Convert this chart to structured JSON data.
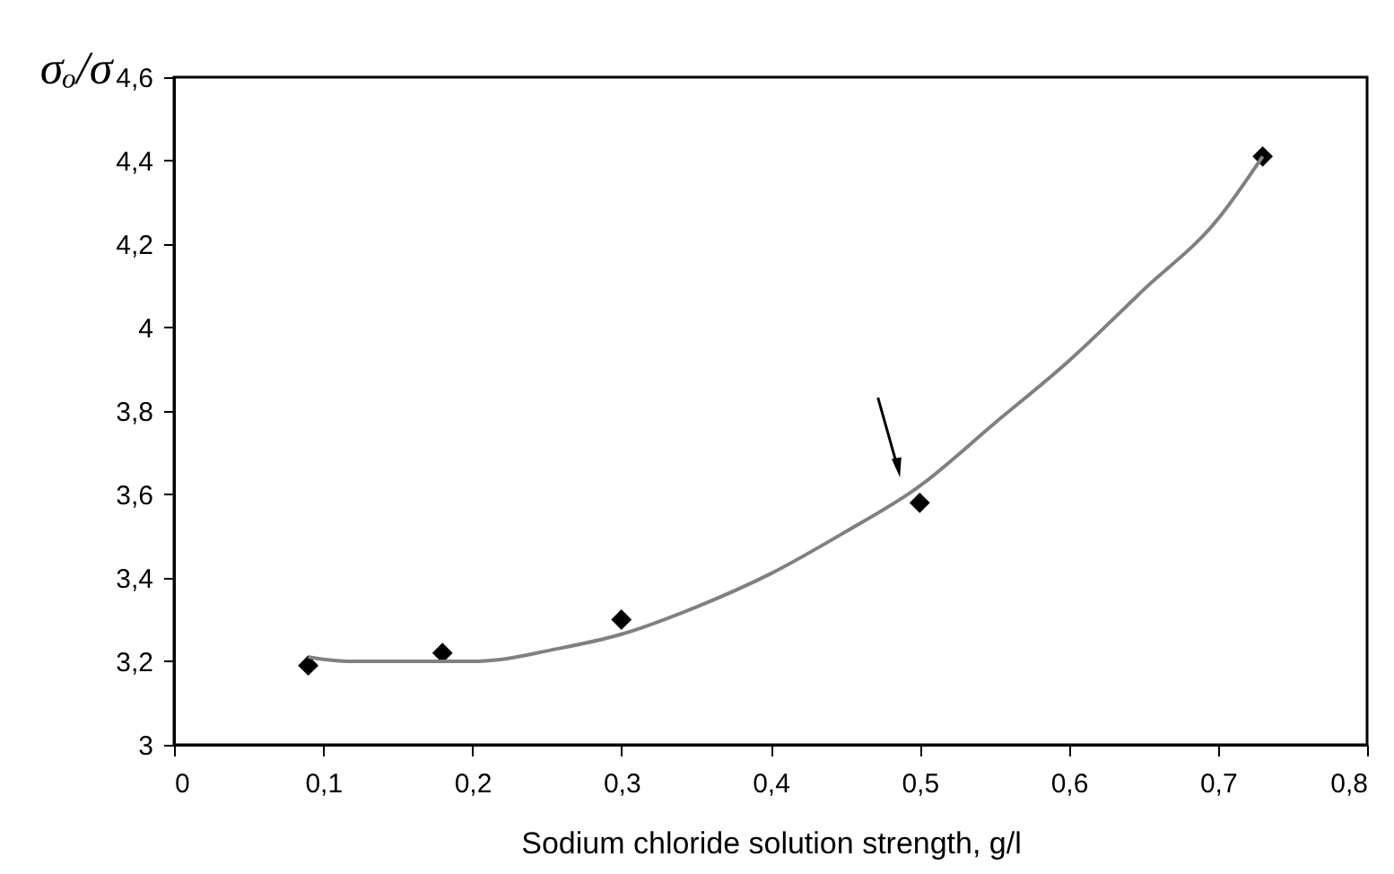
{
  "chart_data": {
    "type": "scatter",
    "xlabel": "Sodium chloride solution strength, g/l",
    "ylabel": "σₒ/σ",
    "xlim": [
      0,
      0.8
    ],
    "ylim": [
      3,
      4.6
    ],
    "xticks": [
      0,
      {
        "value": 0.1,
        "label": "0,1"
      },
      {
        "value": 0.2,
        "label": "0,2"
      },
      {
        "value": 0.3,
        "label": "0,3"
      },
      {
        "value": 0.4,
        "label": "0,4"
      },
      {
        "value": 0.5,
        "label": "0,5"
      },
      {
        "value": 0.6,
        "label": "0,6"
      },
      {
        "value": 0.7,
        "label": "0,7"
      },
      {
        "value": 0.8,
        "label": "0,8"
      }
    ],
    "yticks": [
      3,
      {
        "value": 3.2,
        "label": "3,2"
      },
      {
        "value": 3.4,
        "label": "3,4"
      },
      {
        "value": 3.6,
        "label": "3,6"
      },
      {
        "value": 3.8,
        "label": "3,8"
      },
      4,
      {
        "value": 4.2,
        "label": "4,2"
      },
      {
        "value": 4.4,
        "label": "4,4"
      },
      {
        "value": 4.6,
        "label": "4,6"
      }
    ],
    "grid": false,
    "series": [
      {
        "color": "#000000",
        "marker": "diamond",
        "x": [
          0.09,
          0.18,
          0.3,
          0.5,
          0.73
        ],
        "values": [
          3.19,
          3.22,
          3.3,
          3.58,
          4.41
        ]
      },
      {
        "type": "line",
        "color": "#808080",
        "marker": "none",
        "line_style": "solid",
        "x": [
          0.09,
          0.1,
          0.12,
          0.15,
          0.2,
          0.22,
          0.25,
          0.3,
          0.35,
          0.4,
          0.45,
          0.5,
          0.55,
          0.6,
          0.65,
          0.7,
          0.73
        ],
        "values": [
          3.21,
          3.205,
          3.2,
          3.2,
          3.2,
          3.205,
          3.225,
          3.265,
          3.33,
          3.41,
          3.51,
          3.62,
          3.77,
          3.92,
          4.09,
          4.26,
          4.41
        ]
      }
    ]
  }
}
